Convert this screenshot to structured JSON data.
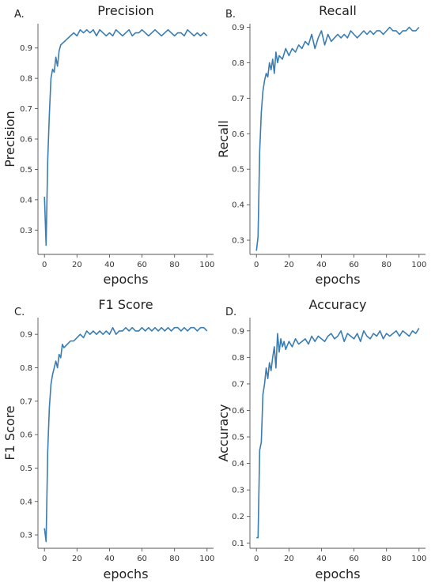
{
  "chart_data": [
    {
      "type": "line",
      "panel_letter": "A.",
      "title": "Precision",
      "xlabel": "epochs",
      "ylabel": "Precision",
      "xlim": [
        -4,
        104
      ],
      "ylim": [
        0.22,
        0.98
      ],
      "xticks": [
        0,
        20,
        40,
        60,
        80,
        100
      ],
      "yticks": [
        0.3,
        0.4,
        0.5,
        0.6,
        0.7,
        0.8,
        0.9
      ],
      "grid": false,
      "series": [
        {
          "color": "#3a7db2",
          "x": [
            0,
            1,
            2,
            3,
            4,
            5,
            6,
            7,
            8,
            9,
            10,
            12,
            14,
            16,
            18,
            20,
            22,
            24,
            26,
            28,
            30,
            32,
            34,
            36,
            38,
            40,
            42,
            44,
            46,
            48,
            50,
            52,
            54,
            56,
            58,
            60,
            62,
            64,
            66,
            68,
            70,
            72,
            74,
            76,
            78,
            80,
            82,
            84,
            86,
            88,
            90,
            92,
            94,
            96,
            98,
            100
          ],
          "y": [
            0.41,
            0.25,
            0.53,
            0.68,
            0.8,
            0.83,
            0.82,
            0.87,
            0.84,
            0.89,
            0.91,
            0.92,
            0.93,
            0.94,
            0.95,
            0.94,
            0.96,
            0.95,
            0.96,
            0.95,
            0.96,
            0.94,
            0.96,
            0.95,
            0.94,
            0.95,
            0.94,
            0.96,
            0.95,
            0.94,
            0.95,
            0.96,
            0.94,
            0.95,
            0.95,
            0.96,
            0.95,
            0.94,
            0.95,
            0.96,
            0.95,
            0.94,
            0.95,
            0.96,
            0.95,
            0.94,
            0.95,
            0.95,
            0.94,
            0.96,
            0.95,
            0.94,
            0.95,
            0.94,
            0.95,
            0.94
          ]
        }
      ]
    },
    {
      "type": "line",
      "panel_letter": "B.",
      "title": "Recall",
      "xlabel": "epochs",
      "ylabel": "Recall",
      "xlim": [
        -4,
        104
      ],
      "ylim": [
        0.26,
        0.91
      ],
      "xticks": [
        0,
        20,
        40,
        60,
        80,
        100
      ],
      "yticks": [
        0.3,
        0.4,
        0.5,
        0.6,
        0.7,
        0.8,
        0.9
      ],
      "grid": false,
      "series": [
        {
          "color": "#3a7db2",
          "x": [
            0,
            1,
            2,
            3,
            4,
            5,
            6,
            7,
            8,
            9,
            10,
            11,
            12,
            13,
            14,
            16,
            18,
            20,
            22,
            24,
            26,
            28,
            30,
            32,
            34,
            36,
            38,
            40,
            42,
            44,
            46,
            48,
            50,
            52,
            54,
            56,
            58,
            60,
            62,
            64,
            66,
            68,
            70,
            72,
            74,
            76,
            78,
            80,
            82,
            84,
            86,
            88,
            90,
            92,
            94,
            96,
            98,
            100
          ],
          "y": [
            0.27,
            0.31,
            0.55,
            0.66,
            0.72,
            0.75,
            0.77,
            0.76,
            0.8,
            0.78,
            0.81,
            0.77,
            0.83,
            0.8,
            0.82,
            0.81,
            0.84,
            0.82,
            0.84,
            0.83,
            0.85,
            0.84,
            0.86,
            0.85,
            0.88,
            0.84,
            0.87,
            0.89,
            0.85,
            0.88,
            0.86,
            0.87,
            0.88,
            0.87,
            0.88,
            0.87,
            0.89,
            0.88,
            0.87,
            0.88,
            0.89,
            0.88,
            0.89,
            0.88,
            0.89,
            0.89,
            0.88,
            0.89,
            0.9,
            0.89,
            0.89,
            0.88,
            0.89,
            0.89,
            0.9,
            0.89,
            0.89,
            0.9
          ]
        }
      ]
    },
    {
      "type": "line",
      "panel_letter": "C.",
      "title": "F1 Score",
      "xlabel": "epochs",
      "ylabel": "F1 Score",
      "xlim": [
        -4,
        104
      ],
      "ylim": [
        0.26,
        0.95
      ],
      "xticks": [
        0,
        20,
        40,
        60,
        80,
        100
      ],
      "yticks": [
        0.3,
        0.4,
        0.5,
        0.6,
        0.7,
        0.8,
        0.9
      ],
      "grid": false,
      "series": [
        {
          "color": "#3a7db2",
          "x": [
            0,
            1,
            2,
            3,
            4,
            5,
            6,
            7,
            8,
            9,
            10,
            11,
            12,
            14,
            16,
            18,
            20,
            22,
            24,
            26,
            28,
            30,
            32,
            34,
            36,
            38,
            40,
            42,
            44,
            46,
            48,
            50,
            52,
            54,
            56,
            58,
            60,
            62,
            64,
            66,
            68,
            70,
            72,
            74,
            76,
            78,
            80,
            82,
            84,
            86,
            88,
            90,
            92,
            94,
            96,
            98,
            100
          ],
          "y": [
            0.32,
            0.28,
            0.55,
            0.68,
            0.75,
            0.78,
            0.8,
            0.82,
            0.8,
            0.84,
            0.83,
            0.87,
            0.86,
            0.87,
            0.88,
            0.88,
            0.89,
            0.9,
            0.89,
            0.91,
            0.9,
            0.91,
            0.9,
            0.91,
            0.9,
            0.91,
            0.9,
            0.92,
            0.9,
            0.91,
            0.91,
            0.92,
            0.91,
            0.92,
            0.91,
            0.91,
            0.92,
            0.91,
            0.92,
            0.91,
            0.92,
            0.91,
            0.92,
            0.91,
            0.92,
            0.91,
            0.92,
            0.92,
            0.91,
            0.92,
            0.91,
            0.92,
            0.92,
            0.91,
            0.92,
            0.92,
            0.91
          ]
        }
      ]
    },
    {
      "type": "line",
      "panel_letter": "D.",
      "title": "Accuracy",
      "xlabel": "epochs",
      "ylabel": "Accuracy",
      "xlim": [
        -4,
        104
      ],
      "ylim": [
        0.08,
        0.95
      ],
      "xticks": [
        0,
        20,
        40,
        60,
        80,
        100
      ],
      "yticks": [
        0.1,
        0.2,
        0.3,
        0.4,
        0.5,
        0.6,
        0.7,
        0.8,
        0.9
      ],
      "grid": false,
      "series": [
        {
          "color": "#3a7db2",
          "x": [
            0,
            1,
            2,
            3,
            4,
            5,
            6,
            7,
            8,
            9,
            10,
            11,
            12,
            13,
            14,
            15,
            16,
            17,
            18,
            20,
            22,
            24,
            26,
            28,
            30,
            32,
            34,
            36,
            38,
            40,
            42,
            44,
            46,
            48,
            50,
            52,
            54,
            56,
            58,
            60,
            62,
            64,
            66,
            68,
            70,
            72,
            74,
            76,
            78,
            80,
            82,
            84,
            86,
            88,
            90,
            92,
            94,
            96,
            98,
            100
          ],
          "y": [
            0.12,
            0.12,
            0.45,
            0.48,
            0.66,
            0.7,
            0.76,
            0.72,
            0.78,
            0.75,
            0.8,
            0.84,
            0.76,
            0.89,
            0.82,
            0.87,
            0.84,
            0.86,
            0.83,
            0.86,
            0.84,
            0.87,
            0.85,
            0.86,
            0.87,
            0.85,
            0.88,
            0.86,
            0.88,
            0.87,
            0.86,
            0.88,
            0.89,
            0.87,
            0.88,
            0.9,
            0.86,
            0.89,
            0.88,
            0.87,
            0.89,
            0.86,
            0.9,
            0.88,
            0.87,
            0.89,
            0.88,
            0.9,
            0.87,
            0.89,
            0.88,
            0.89,
            0.9,
            0.88,
            0.9,
            0.89,
            0.88,
            0.9,
            0.89,
            0.91
          ]
        }
      ]
    }
  ]
}
